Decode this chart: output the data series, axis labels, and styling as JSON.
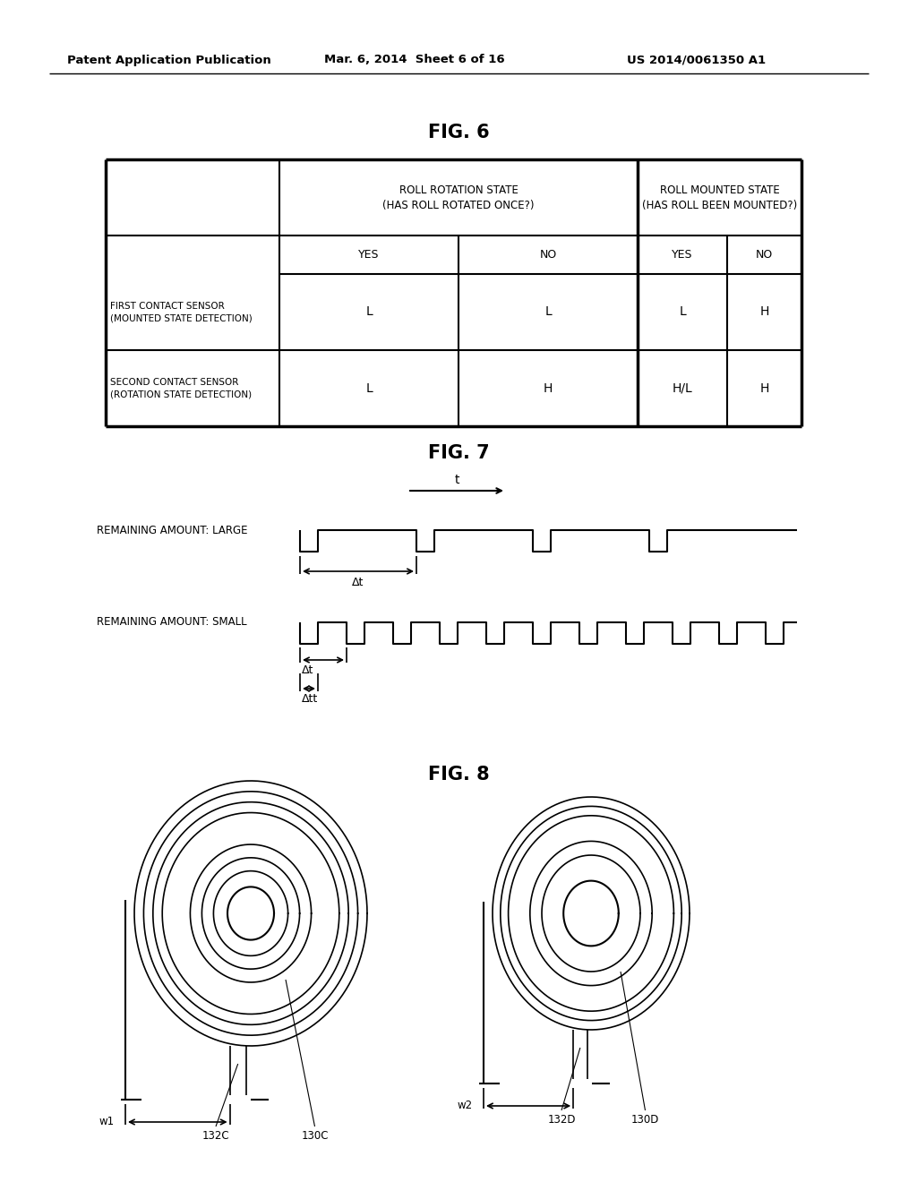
{
  "header_left": "Patent Application Publication",
  "header_mid": "Mar. 6, 2014  Sheet 6 of 16",
  "header_right": "US 2014/0061350 A1",
  "fig6_title": "FIG. 6",
  "fig7_title": "FIG. 7",
  "fig8_title": "FIG. 8",
  "table": {
    "col_headers_row1": [
      "ROLL ROTATION STATE\n(HAS ROLL ROTATED ONCE?)",
      "ROLL MOUNTED STATE\n(HAS ROLL BEEN MOUNTED?)"
    ],
    "col_headers_row2": [
      "YES",
      "NO",
      "YES",
      "NO"
    ],
    "row_labels": [
      "FIRST CONTACT SENSOR\n(MOUNTED STATE DETECTION)",
      "SECOND CONTACT SENSOR\n(ROTATION STATE DETECTION)"
    ],
    "data": [
      [
        "L",
        "L",
        "L",
        "H"
      ],
      [
        "L",
        "H",
        "H/L",
        "H"
      ]
    ]
  },
  "bg_color": "#ffffff",
  "text_color": "#000000"
}
